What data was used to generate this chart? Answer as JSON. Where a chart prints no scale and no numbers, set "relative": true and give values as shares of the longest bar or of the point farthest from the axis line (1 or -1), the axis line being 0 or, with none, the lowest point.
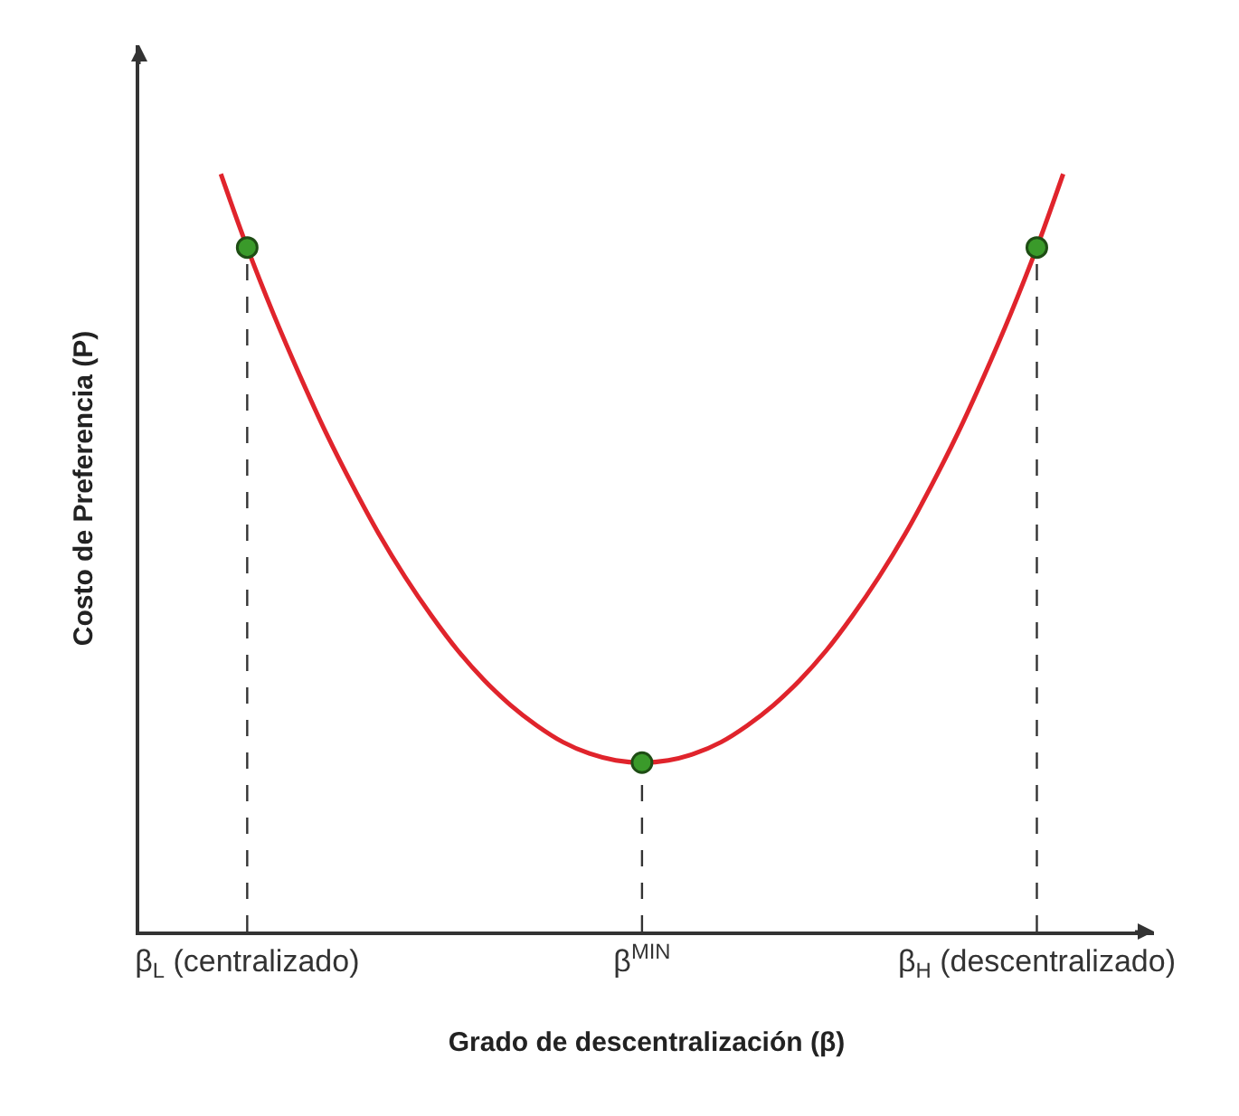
{
  "chart_data": {
    "type": "line",
    "relative": true,
    "xlabel": "Grado de descentralización (β)",
    "ylabel": "Costo de Preferencia (P)",
    "categories": [
      null,
      "β$_{L}$ (centralizado)",
      null,
      null,
      null,
      null,
      null,
      null,
      null,
      null,
      null,
      null,
      null,
      null,
      null,
      null,
      "β$^{MIN}$",
      null,
      null,
      null,
      null,
      null,
      null,
      null,
      null,
      null,
      null,
      null,
      null,
      null,
      null,
      "β$_{H}$ (descentralizado)",
      null
    ],
    "series": [
      {
        "color": "#e0242c",
        "marker": "none",
        "values": [
          1,
          0.903,
          0.815,
          0.734,
          0.658,
          0.589,
          0.525,
          0.468,
          0.417,
          0.371,
          0.332,
          0.299,
          0.272,
          0.25,
          0.235,
          0.226,
          0.223,
          0.226,
          0.235,
          0.25,
          0.272,
          0.299,
          0.332,
          0.371,
          0.417,
          0.468,
          0.525,
          0.589,
          0.658,
          0.734,
          0.815,
          0.903,
          1
        ]
      },
      {
        "type": "lollipop",
        "color": "#3a9a2a",
        "marker": "circle",
        "line_style": "dashed",
        "values": [
          null,
          0.903,
          null,
          null,
          null,
          null,
          null,
          null,
          null,
          null,
          null,
          null,
          null,
          null,
          null,
          null,
          0.223,
          null,
          null,
          null,
          null,
          null,
          null,
          null,
          null,
          null,
          null,
          null,
          null,
          null,
          null,
          0.903,
          null
        ]
      }
    ]
  }
}
